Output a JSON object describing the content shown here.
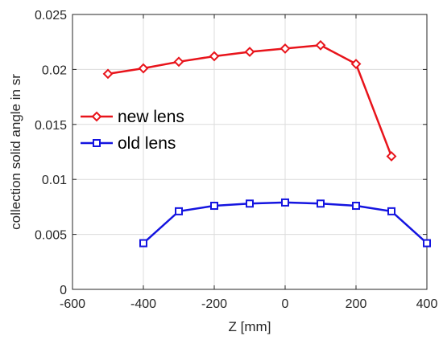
{
  "chart_data": {
    "type": "line",
    "xlabel": "Z [mm]",
    "ylabel": "collection solid angle in sr",
    "xlim": [
      -600,
      400
    ],
    "ylim": [
      0,
      0.025
    ],
    "x_ticks": [
      -600,
      -400,
      -200,
      0,
      200,
      400
    ],
    "x_tick_labels": [
      "-600",
      "-400",
      "-200",
      "0",
      "200",
      "400"
    ],
    "y_ticks": [
      0,
      0.005,
      0.01,
      0.015,
      0.02,
      0.025
    ],
    "y_tick_labels": [
      "0",
      "0.005",
      "0.01",
      "0.015",
      "0.02",
      "0.025"
    ],
    "grid": true,
    "legend_position": "left-middle",
    "series": [
      {
        "name": "new lens",
        "color": "#e8141b",
        "marker": "diamond",
        "x": [
          -500,
          -400,
          -300,
          -200,
          -100,
          0,
          100,
          200,
          300
        ],
        "y": [
          0.0196,
          0.0201,
          0.0207,
          0.0212,
          0.0216,
          0.0219,
          0.0222,
          0.0205,
          0.0121
        ]
      },
      {
        "name": "old lens",
        "color": "#1414e0",
        "marker": "square",
        "x": [
          -400,
          -300,
          -200,
          -100,
          0,
          100,
          200,
          300,
          400
        ],
        "y": [
          0.0042,
          0.0071,
          0.0076,
          0.0078,
          0.0079,
          0.0078,
          0.0076,
          0.0071,
          0.0042
        ]
      }
    ]
  }
}
